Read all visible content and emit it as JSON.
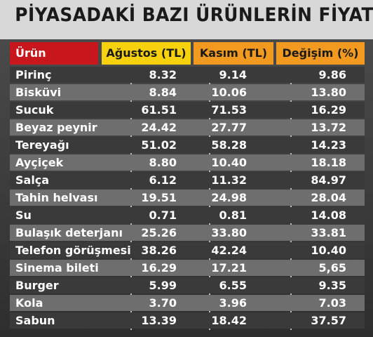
{
  "title": "PİYASADAKİ BAZI ÜRÜNLERİN FİYATLARI",
  "table": {
    "header": [
      "Ürün",
      "Ağustos (TL)",
      "Kasım (TL)",
      "Değişim (%)"
    ],
    "rows": [
      [
        "Pirinç",
        "8.32",
        "9.14",
        "9.86"
      ],
      [
        "Bisküvi",
        "8.84",
        "10.06",
        "13.80"
      ],
      [
        "Sucuk",
        "61.51",
        "71.53",
        "16.29"
      ],
      [
        "Beyaz peynir",
        "24.42",
        "27.77",
        "13.72"
      ],
      [
        "Tereyağı",
        "51.02",
        "58.28",
        "14.23"
      ],
      [
        "Ayçiçek",
        "8.80",
        "10.40",
        "18.18"
      ],
      [
        "Salça",
        "6.12",
        "11.32",
        "84.97"
      ],
      [
        "Tahin helvası",
        "19.51",
        "24.98",
        "28.04"
      ],
      [
        "Su",
        "0.71",
        "0.81",
        "14.08"
      ],
      [
        "Bulaşık deterjanı",
        "25.26",
        "33.80",
        "33.81"
      ],
      [
        "Telefon görüşmesi",
        "38.26",
        "42.24",
        "10.40"
      ],
      [
        "Sinema bileti",
        "16.29",
        "17.21",
        "5,65"
      ],
      [
        "Burger",
        "5.99",
        "6.55",
        "9.35"
      ],
      [
        "Kola",
        "3.70",
        "3.96",
        "7.03"
      ],
      [
        "Sabun",
        "13.39",
        "18.42",
        "37.57"
      ]
    ]
  }
}
